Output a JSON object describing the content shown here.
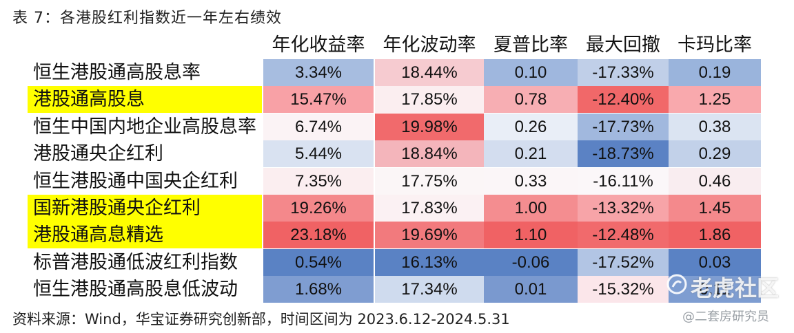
{
  "title": "表 7：各港股红利指数近一年左右绩效",
  "headers": [
    "年化收益率",
    "年化波动率",
    "夏普比率",
    "最大回撤",
    "卡玛比率"
  ],
  "rows": [
    {
      "name": "恒生港股通高股息率",
      "highlight": false,
      "cells": [
        {
          "v": "3.34%",
          "c": "#a7bde0"
        },
        {
          "v": "18.44%",
          "c": "#f6cbd0"
        },
        {
          "v": "0.10",
          "c": "#9fb7de"
        },
        {
          "v": "-17.33%",
          "c": "#c0cfe8"
        },
        {
          "v": "0.19",
          "c": "#9ab4dc"
        }
      ]
    },
    {
      "name": "港股通高股息",
      "highlight": true,
      "cells": [
        {
          "v": "15.47%",
          "c": "#f8a1a6"
        },
        {
          "v": "17.85%",
          "c": "#fbeef0"
        },
        {
          "v": "0.78",
          "c": "#f7aeb3"
        },
        {
          "v": "-12.40%",
          "c": "#f16869"
        },
        {
          "v": "1.25",
          "c": "#f9a9ad"
        }
      ]
    },
    {
      "name": "恒生中国内地企业高股息率",
      "highlight": false,
      "cells": [
        {
          "v": "6.74%",
          "c": "#fbf3f5"
        },
        {
          "v": "19.98%",
          "c": "#f16a6c"
        },
        {
          "v": "0.26",
          "c": "#e9eef7"
        },
        {
          "v": "-17.73%",
          "c": "#a1b8de"
        },
        {
          "v": "0.38",
          "c": "#dbe4f2"
        }
      ]
    },
    {
      "name": "港股通央企红利",
      "highlight": false,
      "cells": [
        {
          "v": "5.44%",
          "c": "#d9e2f1"
        },
        {
          "v": "18.84%",
          "c": "#f4b5bb"
        },
        {
          "v": "0.21",
          "c": "#d3ddef"
        },
        {
          "v": "-18.73%",
          "c": "#5b82c4"
        },
        {
          "v": "0.29",
          "c": "#c2d1e9"
        }
      ]
    },
    {
      "name": "恒生港股通中国央企红利",
      "highlight": false,
      "cells": [
        {
          "v": "7.35%",
          "c": "#fbeef0"
        },
        {
          "v": "17.75%",
          "c": "#fbf6f7"
        },
        {
          "v": "0.33",
          "c": "#fbf6f8"
        },
        {
          "v": "-16.11%",
          "c": "#fbf7f9"
        },
        {
          "v": "0.46",
          "c": "#f9edf0"
        }
      ]
    },
    {
      "name": "国新港股通央企红利",
      "highlight": true,
      "cells": [
        {
          "v": "19.26%",
          "c": "#f4888b"
        },
        {
          "v": "17.83%",
          "c": "#fbf1f3"
        },
        {
          "v": "1.00",
          "c": "#f48d90"
        },
        {
          "v": "-13.32%",
          "c": "#f7a4a8"
        },
        {
          "v": "1.45",
          "c": "#f4898c"
        }
      ]
    },
    {
      "name": "港股通高息精选",
      "highlight": true,
      "cells": [
        {
          "v": "23.18%",
          "c": "#f06264"
        },
        {
          "v": "19.69%",
          "c": "#f27a7d"
        },
        {
          "v": "1.10",
          "c": "#f06264"
        },
        {
          "v": "-12.48%",
          "c": "#f16a6c"
        },
        {
          "v": "1.86",
          "c": "#f06264"
        }
      ]
    },
    {
      "name": "标普港股通低波红利指数",
      "highlight": false,
      "cells": [
        {
          "v": "0.54%",
          "c": "#5a82c4"
        },
        {
          "v": "16.13%",
          "c": "#5a82c4"
        },
        {
          "v": "-0.06",
          "c": "#5a82c4"
        },
        {
          "v": "-17.52%",
          "c": "#b2c5e4"
        },
        {
          "v": "0.03",
          "c": "#5a82c4"
        }
      ]
    },
    {
      "name": "恒生港股通高股息低波动",
      "highlight": false,
      "cells": [
        {
          "v": "1.68%",
          "c": "#7f9dd1"
        },
        {
          "v": "17.34%",
          "c": "#cfdbee"
        },
        {
          "v": "0.01",
          "c": "#7a99cf"
        },
        {
          "v": "-15.32%",
          "c": "#fbe6ea"
        },
        {
          "v": "0.11",
          "c": "#7e9dd1"
        }
      ]
    }
  ],
  "source": "资料来源：Wind，华宝证券研究创新部，时间区间为 2023.6.12-2024.5.31",
  "watermark": {
    "main": "老虎社区",
    "sub": "@二套房研究员",
    "icon": "tiger-logo-icon"
  }
}
